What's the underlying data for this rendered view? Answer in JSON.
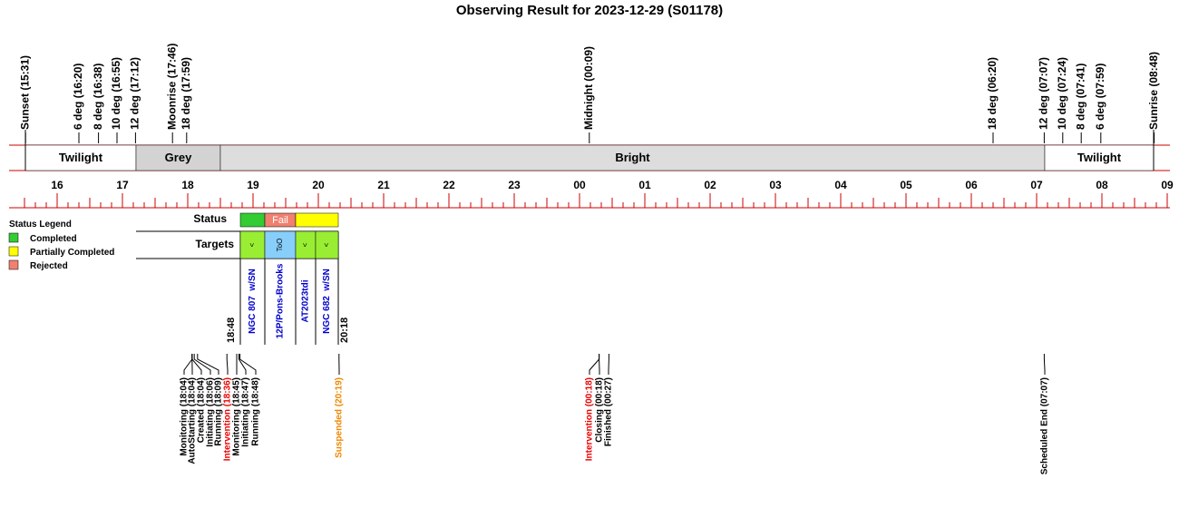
{
  "title": "Observing Result for 2023-12-29 (S01178)",
  "top_events": [
    {
      "label": "Sunset (15:31)",
      "color": "#000000"
    },
    {
      "label": "6 deg (16:20)",
      "color": "#000000"
    },
    {
      "label": "8 deg (16:38)",
      "color": "#000000"
    },
    {
      "label": "10 deg (16:55)",
      "color": "#000000"
    },
    {
      "label": "12 deg (17:12)",
      "color": "#000000"
    },
    {
      "label": "Moonrise (17:46)",
      "color": "#0000cc"
    },
    {
      "label": "18 deg (17:59)",
      "color": "#000000"
    },
    {
      "label": "Midnight (00:09)",
      "color": "#000000"
    },
    {
      "label": "18 deg (06:20)",
      "color": "#000000"
    },
    {
      "label": "12 deg (07:07)",
      "color": "#000000"
    },
    {
      "label": "10 deg (07:24)",
      "color": "#000000"
    },
    {
      "label": "8 deg (07:41)",
      "color": "#000000"
    },
    {
      "label": "6 deg (07:59)",
      "color": "#000000"
    },
    {
      "label": "Sunrise (08:48)",
      "color": "#000000"
    }
  ],
  "sky_bands": [
    {
      "label": "Twilight",
      "color": "#ffffff"
    },
    {
      "label": "Grey",
      "color": "#d3d3d3"
    },
    {
      "label": "Bright",
      "color": "#dddddd"
    },
    {
      "label": "Twilight",
      "color": "#ffffff"
    }
  ],
  "hours": [
    "16",
    "17",
    "18",
    "19",
    "20",
    "21",
    "22",
    "23",
    "00",
    "01",
    "02",
    "03",
    "04",
    "05",
    "06",
    "07",
    "08",
    "09"
  ],
  "legend": {
    "title": "Status Legend",
    "items": [
      {
        "label": "Completed",
        "color": "#33cc33"
      },
      {
        "label": "Partially Completed",
        "color": "#ffff00"
      },
      {
        "label": "Rejected",
        "color": "#f08070"
      }
    ]
  },
  "status": {
    "label": "Status",
    "cells": [
      {
        "color": "#33cc33"
      },
      {
        "color": "#f08070",
        "text": "Fail"
      },
      {
        "color": "#ffff00"
      }
    ]
  },
  "targets": {
    "label": "Targets",
    "items": [
      {
        "name": "NGC 807  w/SN",
        "mark": "<",
        "color": "#99ee33"
      },
      {
        "name": "12P/Pons-Brooks",
        "mark": "ToO",
        "color": "#87cefa"
      },
      {
        "name": "AT2023tdi",
        "mark": "<",
        "color": "#99ee33"
      },
      {
        "name": "NGC 682  w/SN",
        "mark": "<",
        "color": "#99ee33"
      }
    ],
    "start_time": "18:48",
    "end_time": "20:18"
  },
  "bottom_events": [
    {
      "label": "Monitoring (18:04)",
      "color": "#000000"
    },
    {
      "label": "AutoStarting (18:04)",
      "color": "#000000"
    },
    {
      "label": "Created (18:04)",
      "color": "#000000"
    },
    {
      "label": "Initiating (18:06)",
      "color": "#000000"
    },
    {
      "label": "Running (18:09)",
      "color": "#000000"
    },
    {
      "label": "Intervention (18:36)",
      "color": "#ee0000"
    },
    {
      "label": "Monitoring (18:45)",
      "color": "#000000"
    },
    {
      "label": "Initiating (18:47)",
      "color": "#000000"
    },
    {
      "label": "Running (18:48)",
      "color": "#000000"
    },
    {
      "label": "Suspended (20:19)",
      "color": "#ee8800"
    },
    {
      "label": "Intervention (00:18)",
      "color": "#ee0000"
    },
    {
      "label": "Closing (00:18)",
      "color": "#000000"
    },
    {
      "label": "Finished (00:27)",
      "color": "#000000"
    },
    {
      "label": "Scheduled End (07:07)",
      "color": "#000000"
    }
  ]
}
